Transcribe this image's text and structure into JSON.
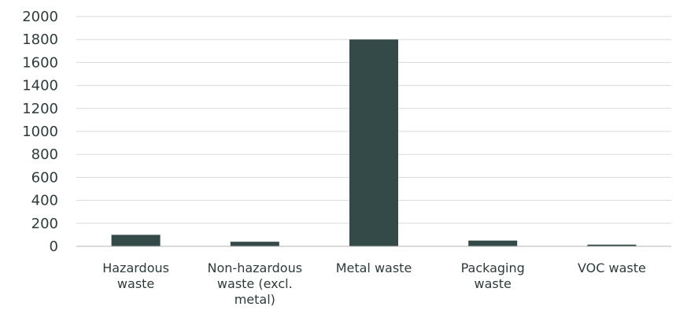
{
  "chart_data": {
    "type": "bar",
    "title": "",
    "xlabel": "",
    "ylabel": "",
    "ylim": [
      0,
      2000
    ],
    "y_ticks": [
      0,
      200,
      400,
      600,
      800,
      1000,
      1200,
      1400,
      1600,
      1800,
      2000
    ],
    "grid": true,
    "legend": "none",
    "categories": [
      [
        "Hazardous",
        "waste"
      ],
      [
        "Non-hazardous",
        "waste (excl.",
        "metal)"
      ],
      [
        "Metal waste"
      ],
      [
        "Packaging",
        "waste"
      ],
      [
        "VOC waste"
      ]
    ],
    "values": [
      100,
      40,
      1800,
      50,
      15
    ],
    "colors": {
      "bar": "#344a48",
      "grid": "#d9d9d9",
      "axis": "#b3b3b3",
      "text": "#2f3a3a"
    }
  }
}
